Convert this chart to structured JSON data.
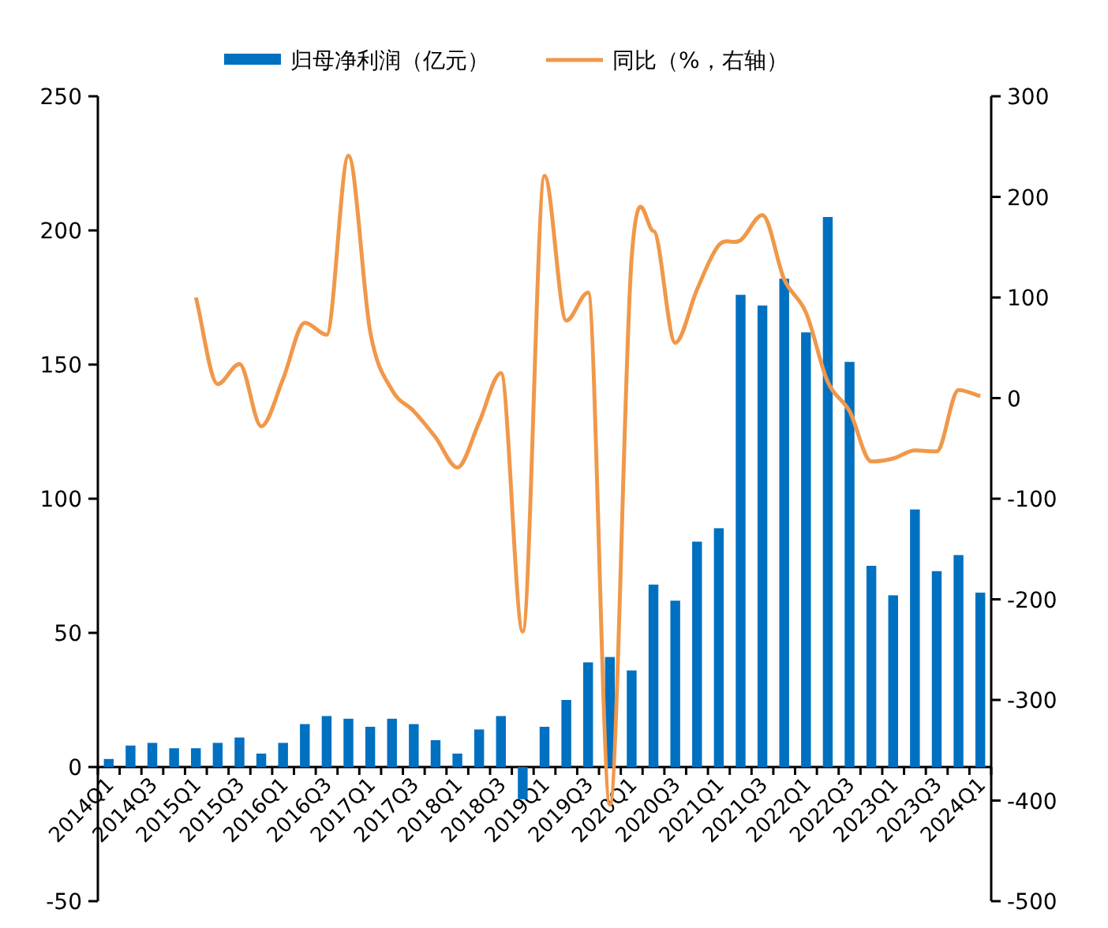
{
  "chart_data": {
    "type": "bar",
    "categories": [
      "2014Q1",
      null,
      "2014Q3",
      null,
      "2015Q1",
      null,
      "2015Q3",
      null,
      "2016Q1",
      null,
      "2016Q3",
      null,
      "2017Q1",
      null,
      "2017Q3",
      null,
      "2018Q1",
      null,
      "2018Q3",
      null,
      "2019Q1",
      null,
      "2019Q3",
      null,
      "2020Q1",
      null,
      "2020Q3",
      null,
      "2021Q1",
      null,
      "2021Q3",
      null,
      "2022Q1",
      null,
      "2022Q3",
      null,
      "2023Q1",
      null,
      "2023Q3",
      null,
      "2024Q1"
    ],
    "series": [
      {
        "name": "归母净利润（亿元）",
        "color": "#0070c0",
        "values": [
          3,
          8,
          9,
          7,
          7,
          9,
          11,
          5,
          9,
          16,
          19,
          18,
          15,
          18,
          16,
          10,
          5,
          14,
          19,
          -12,
          15,
          25,
          39,
          41,
          36,
          68,
          62,
          84,
          89,
          176,
          172,
          182,
          162,
          205,
          151,
          75,
          64,
          96,
          73,
          79,
          65
        ]
      },
      {
        "name": "同比（%，右轴）",
        "type": "line",
        "axis": "y2",
        "color": "#f0984a",
        "values": [
          null,
          null,
          null,
          null,
          100,
          14,
          34,
          -28,
          19,
          75,
          63,
          241,
          66,
          8,
          -13,
          -39,
          -69,
          -24,
          25,
          -232,
          221,
          77,
          105,
          -404,
          140,
          166,
          55,
          108,
          152,
          157,
          182,
          118,
          85,
          16,
          -13,
          -63,
          -60,
          -52,
          -53,
          8,
          2
        ]
      }
    ],
    "ylim": [
      -50,
      250
    ],
    "yticks": [
      -50,
      0,
      50,
      100,
      150,
      200,
      250
    ],
    "y2lim": [
      -500,
      300
    ],
    "y2ticks": [
      -500,
      -400,
      -300,
      -200,
      -100,
      0,
      100,
      200,
      300
    ],
    "legend": "top",
    "grid": false
  }
}
